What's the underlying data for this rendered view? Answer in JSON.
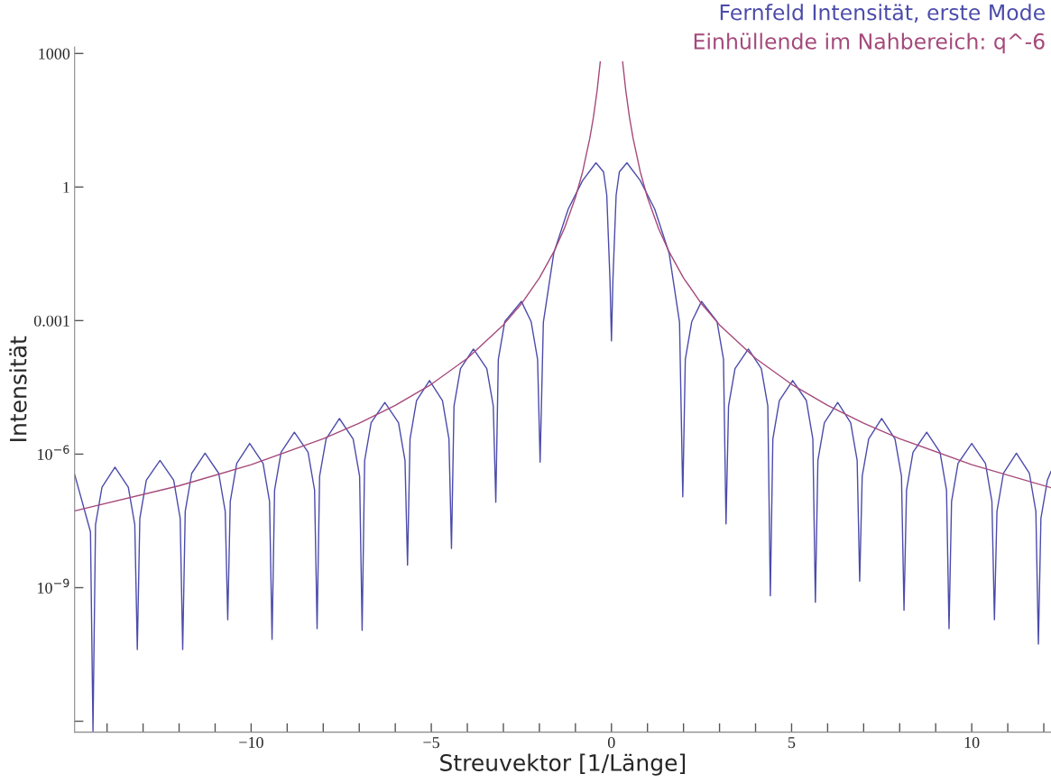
{
  "chart_data": {
    "type": "line",
    "xlabel": "Streuvektor [1/Länge]",
    "ylabel": "Intensität",
    "log": "y",
    "grid": false,
    "legend": "top right",
    "marker": "none",
    "line_style": "solid",
    "xlim": [
      -14.9,
      12.2
    ],
    "ylim": [
      5.7e-13,
      1400
    ],
    "xticks": [
      {
        "value": -14,
        "label": null
      },
      {
        "value": -13,
        "label": null
      },
      {
        "value": -12,
        "label": null
      },
      {
        "value": -11,
        "label": null
      },
      {
        "value": -10,
        "label": "−10"
      },
      {
        "value": -9,
        "label": null
      },
      {
        "value": -8,
        "label": null
      },
      {
        "value": -7,
        "label": null
      },
      {
        "value": -6,
        "label": null
      },
      {
        "value": -5,
        "label": "−5"
      },
      {
        "value": -4,
        "label": null
      },
      {
        "value": -3,
        "label": null
      },
      {
        "value": -2,
        "label": null
      },
      {
        "value": -1,
        "label": null
      },
      {
        "value": 0,
        "label": "0"
      },
      {
        "value": 1,
        "label": null
      },
      {
        "value": 2,
        "label": null
      },
      {
        "value": 3,
        "label": null
      },
      {
        "value": 4,
        "label": null
      },
      5,
      {
        "value": 6,
        "label": null
      },
      {
        "value": 7,
        "label": null
      },
      {
        "value": 8,
        "label": null
      },
      {
        "value": 9,
        "label": null
      },
      10,
      {
        "value": 11,
        "label": null
      },
      {
        "value": 12,
        "label": null
      }
    ],
    "yticks": [
      1000,
      1,
      0.001,
      {
        "value": 1e-06,
        "label": "10$^{−6}$"
      },
      {
        "value": 1e-09,
        "label": "10$^{−9}$"
      },
      {
        "value": 1e-12,
        "label": null
      }
    ],
    "series": [
      {
        "name": "Fernfeld Intensität, erste Mode",
        "color": "#4b4bab",
        "x": [
          -14.9,
          -14.46,
          -14.39,
          -14.32,
          -14.14,
          -13.78,
          -13.41,
          -13.23,
          -13.16,
          -13.09,
          -12.91,
          -12.53,
          -12.15,
          -11.97,
          -11.9,
          -11.83,
          -11.65,
          -11.28,
          -10.9,
          -10.72,
          -10.65,
          -10.58,
          -10.4,
          -10.04,
          -9.67,
          -9.49,
          -9.42,
          -9.35,
          -9.17,
          -8.8,
          -8.42,
          -8.24,
          -8.17,
          -8.1,
          -7.92,
          -7.55,
          -7.17,
          -6.99,
          -6.92,
          -6.85,
          -6.67,
          -6.29,
          -5.91,
          -5.73,
          -5.66,
          -5.59,
          -5.41,
          -5.05,
          -4.69,
          -4.51,
          -4.44,
          -4.37,
          -4.19,
          -3.83,
          -3.46,
          -3.28,
          -3.21,
          -3.14,
          -2.96,
          -2.5,
          -2.23,
          -2.05,
          -1.98,
          -1.89,
          -1.6,
          -1.2,
          -0.8,
          -0.43,
          -0.22,
          -0.13,
          -0.04,
          0,
          0.04,
          0.13,
          0.22,
          0.43,
          0.8,
          1.2,
          1.6,
          1.89,
          1.98,
          2.05,
          2.23,
          2.5,
          2.93,
          3.11,
          3.18,
          3.25,
          3.43,
          3.8,
          4.16,
          4.34,
          4.41,
          4.48,
          4.66,
          5.03,
          5.41,
          5.59,
          5.66,
          5.73,
          5.91,
          6.28,
          6.64,
          6.82,
          6.89,
          6.96,
          7.14,
          7.5,
          7.87,
          8.05,
          8.12,
          8.19,
          8.37,
          8.75,
          9.12,
          9.3,
          9.37,
          9.44,
          9.62,
          10.0,
          10.38,
          10.56,
          10.63,
          10.7,
          10.88,
          11.24,
          11.6,
          11.78,
          11.85,
          11.92,
          12.1,
          12.2
        ],
        "values": [
          3.5e-07,
          1.8e-08,
          6e-13,
          2.6e-08,
          1.8e-07,
          5.1e-07,
          1.8e-07,
          2.6e-08,
          4.1e-11,
          3.6e-08,
          2.6e-07,
          7.2e-07,
          2.6e-07,
          3.6e-08,
          4.1e-11,
          5.2e-08,
          3.7e-07,
          1.05e-06,
          3.7e-07,
          5.2e-08,
          1.9e-10,
          8.7e-08,
          6.2e-07,
          1.74e-06,
          6.2e-07,
          8.7e-08,
          6.9e-11,
          1.55e-07,
          1.1e-06,
          3.1e-06,
          1.1e-06,
          1.55e-07,
          1.2e-10,
          3.2e-07,
          2.2e-06,
          6.3e-06,
          2.2e-06,
          3.2e-07,
          1.1e-10,
          7.2e-07,
          5.1e-06,
          1.45e-05,
          5.1e-06,
          7.2e-07,
          3.2e-09,
          2.2e-06,
          1.6e-05,
          4.5e-05,
          1.6e-05,
          2.2e-06,
          7.6e-09,
          1.2e-05,
          8.3e-05,
          0.00023,
          8.3e-05,
          1.2e-05,
          8.3e-08,
          0.000135,
          0.00095,
          0.0027,
          0.00095,
          0.000135,
          6.6e-07,
          0.00091,
          0.033,
          0.32,
          1.4,
          3.5,
          2.2,
          0.66,
          0.0079,
          0.00035,
          0.0079,
          0.66,
          2.2,
          3.5,
          1.4,
          0.32,
          0.033,
          0.00091,
          1.1e-07,
          0.000135,
          0.00095,
          0.0027,
          0.00095,
          0.000135,
          2.7e-08,
          1.2e-05,
          8.3e-05,
          0.00023,
          8.3e-05,
          1.2e-05,
          6.6e-10,
          2.2e-06,
          1.6e-05,
          4.5e-05,
          1.6e-05,
          2.2e-06,
          4.7e-10,
          7.2e-07,
          5.1e-06,
          1.45e-05,
          5.1e-06,
          7.2e-07,
          1.4e-09,
          3.2e-07,
          2.2e-06,
          6.3e-06,
          2.2e-06,
          3.2e-07,
          3.1e-10,
          1.55e-07,
          1.1e-06,
          3.1e-06,
          1.1e-06,
          1.55e-07,
          1.2e-10,
          8.7e-08,
          6.2e-07,
          1.74e-06,
          6.2e-07,
          8.7e-08,
          1.9e-10,
          5.2e-08,
          3.7e-07,
          1.05e-06,
          3.7e-07,
          5.2e-08,
          5.4e-11,
          3.6e-08,
          2.6e-07,
          4.1e-07
        ]
      },
      {
        "name": "Einhüllende im Nahbereich: q^-6",
        "color": "#a5497a",
        "x": [
          -14.9,
          -12,
          -10,
          -8,
          -7,
          -6,
          -5,
          -4,
          -3,
          -2.5,
          -2,
          -1.6,
          -1.3,
          -1,
          -0.8,
          -0.6,
          -0.5,
          -0.4,
          -0.31,
          0,
          0.31,
          0.4,
          0.5,
          0.6,
          0.8,
          1,
          1.3,
          1.6,
          2,
          2.5,
          3,
          4,
          5,
          6,
          7,
          8,
          10,
          12.2
        ],
        "values": [
          5.3e-08,
          1.95e-07,
          5.8e-07,
          2.22e-06,
          4.95e-06,
          1.25e-05,
          3.7e-05,
          0.000142,
          0.0008,
          0.00238,
          0.0091,
          0.035,
          0.121,
          0.58,
          2.2,
          12.5,
          37,
          142,
          656,
          null,
          656,
          142,
          37,
          12.5,
          2.2,
          0.58,
          0.121,
          0.035,
          0.0091,
          0.00238,
          0.0008,
          0.000142,
          3.7e-05,
          1.25e-05,
          4.95e-06,
          2.22e-06,
          5.8e-07,
          1.76e-07
        ]
      }
    ]
  }
}
